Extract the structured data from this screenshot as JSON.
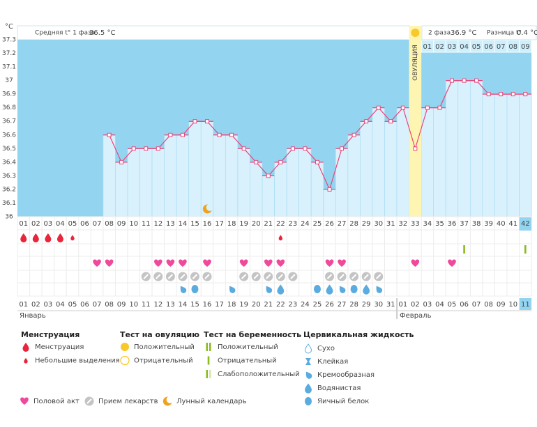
{
  "unit": "°C",
  "header": {
    "phase1_label": "Средняя t° 1 фаза",
    "phase1_value": "36.5 °C",
    "phase2_label": "2 фаза",
    "phase2_value": "36.9 °C",
    "diff_label": "Разница t°",
    "diff_value": "0.4 °C",
    "phase2_days": [
      "01",
      "02",
      "03",
      "04",
      "05",
      "06",
      "07",
      "08",
      "09"
    ]
  },
  "ovulation": {
    "label": "ОВУЛЯЦИЯ",
    "day": 33
  },
  "chart_data": {
    "type": "line",
    "color": "#e8457a",
    "fill": "#d9f1fc",
    "background": "#93d5f1",
    "categories": [
      "01",
      "02",
      "03",
      "04",
      "05",
      "06",
      "07",
      "08",
      "09",
      "10",
      "11",
      "12",
      "13",
      "14",
      "15",
      "16",
      "17",
      "18",
      "19",
      "20",
      "21",
      "22",
      "23",
      "24",
      "25",
      "26",
      "27",
      "28",
      "29",
      "30",
      "31",
      "32",
      "33",
      "34",
      "35",
      "36",
      "37",
      "38",
      "39",
      "40",
      "41",
      "42"
    ],
    "values": [
      null,
      null,
      null,
      null,
      null,
      null,
      null,
      36.6,
      36.4,
      36.5,
      36.5,
      36.5,
      36.6,
      36.6,
      36.7,
      36.7,
      36.6,
      36.6,
      36.5,
      36.4,
      36.3,
      36.4,
      36.5,
      36.5,
      36.4,
      36.2,
      36.5,
      36.6,
      36.7,
      36.8,
      36.7,
      36.8,
      36.5,
      36.8,
      36.8,
      37,
      37,
      37,
      36.9,
      36.9,
      36.9,
      36.9
    ],
    "ylim": [
      36,
      37.3
    ],
    "yticks": [
      36,
      36.1,
      36.2,
      36.3,
      36.4,
      36.5,
      36.6,
      36.7,
      36.8,
      36.9,
      37,
      37.1,
      37.2,
      37.3
    ]
  },
  "calendar": {
    "months": [
      {
        "name": "Январь",
        "dates": [
          "01",
          "02",
          "03",
          "04",
          "05",
          "06",
          "07",
          "08",
          "09",
          "10",
          "11",
          "12",
          "13",
          "14",
          "15",
          "16",
          "17",
          "18",
          "19",
          "20",
          "21",
          "22",
          "23",
          "24",
          "25",
          "26",
          "27",
          "28",
          "29",
          "30",
          "31"
        ]
      },
      {
        "name": "Февраль",
        "dates": [
          "01",
          "02",
          "03",
          "04",
          "05",
          "06",
          "07",
          "08",
          "09",
          "10",
          "11"
        ]
      }
    ],
    "red": [
      [
        "04",
        "05",
        "11",
        "12",
        "18",
        "19",
        "25",
        "26"
      ],
      [
        "01",
        "02",
        "08",
        "09"
      ]
    ]
  },
  "legend": {
    "groups": [
      {
        "title": "Менструация",
        "items": [
          {
            "label": "Менструация",
            "icon": "drop",
            "color": "#e8253a",
            "days": [
              1,
              2,
              3,
              4
            ]
          },
          {
            "label": "Небольшие выделения",
            "icon": "drop-small",
            "color": "#e8253a",
            "days": [
              5,
              22
            ]
          }
        ]
      },
      {
        "title": "Тест на овуляцию",
        "items": [
          {
            "label": "Положительный",
            "icon": "sun",
            "color": "#f9c82b",
            "days": [
              33
            ]
          },
          {
            "label": "Отрицательный",
            "icon": "ring",
            "color": "#f9c82b"
          }
        ]
      },
      {
        "title": "Тест на беременность",
        "items": [
          {
            "label": "Положительный",
            "icon": "bars2",
            "color": "#8bbb1d"
          },
          {
            "label": "Отрицательный",
            "icon": "bar1",
            "color": "#8bbb1d",
            "days": [
              37,
              42
            ]
          },
          {
            "label": "Слабоположительный",
            "icon": "bar-weak",
            "color": "#8bbb1d"
          }
        ]
      },
      {
        "title": "Цервикальная жидкость",
        "items": [
          {
            "label": "Сухо",
            "icon": "dry",
            "color": "#5aabe0"
          },
          {
            "label": "Клейкая",
            "icon": "sticky",
            "color": "#5aabe0"
          },
          {
            "label": "Кремообразная",
            "icon": "creamy",
            "color": "#5aabe0",
            "days": [
              14,
              18,
              21,
              27,
              30
            ]
          },
          {
            "label": "Водянистая",
            "icon": "watery",
            "color": "#5aabe0",
            "days": [
              22,
              26,
              29
            ]
          },
          {
            "label": "Яичный белок",
            "icon": "egg",
            "color": "#5aabe0",
            "days": [
              15,
              25,
              28
            ]
          }
        ]
      }
    ],
    "bottom": [
      {
        "label": "Половой акт",
        "icon": "heart",
        "color": "#f0489a",
        "days": [
          7,
          8,
          12,
          13,
          14,
          16,
          19,
          21,
          22,
          26,
          27,
          33,
          36
        ]
      },
      {
        "label": "Прием лекарств",
        "icon": "med",
        "color": "#c4c4c4",
        "days": [
          11,
          12,
          13,
          14,
          15,
          16,
          19,
          20,
          21,
          22,
          23,
          26,
          27,
          28,
          29,
          30
        ]
      },
      {
        "label": "Лунный календарь",
        "icon": "moon",
        "color": "#f0a21e",
        "days": [
          16
        ]
      }
    ]
  }
}
